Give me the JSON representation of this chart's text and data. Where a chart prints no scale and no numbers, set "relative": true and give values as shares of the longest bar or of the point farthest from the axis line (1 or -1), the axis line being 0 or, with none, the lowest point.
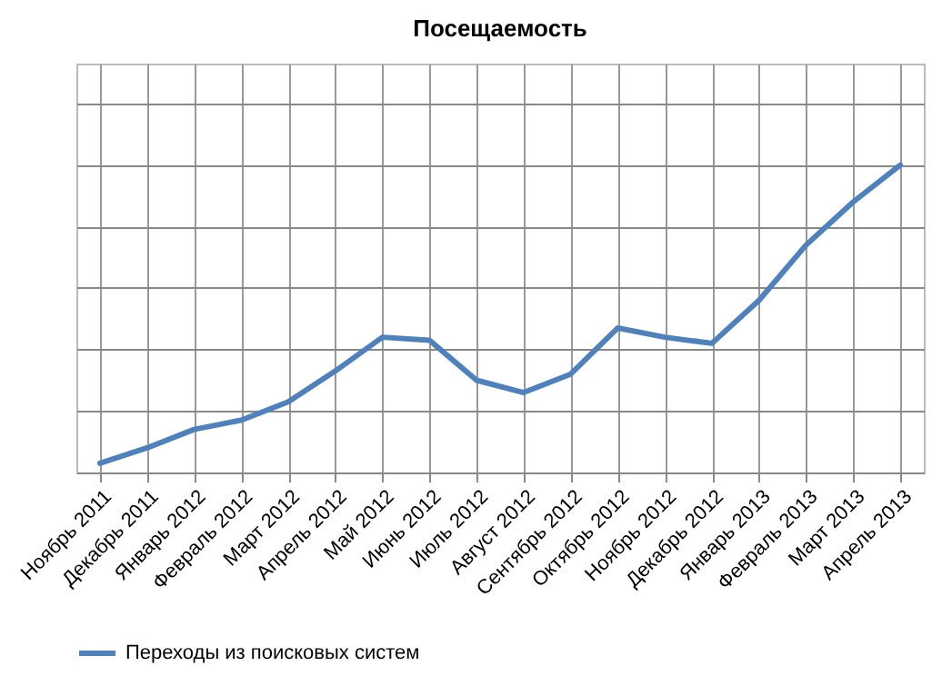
{
  "chart_data": {
    "type": "line",
    "title": "Посещаемость",
    "relative": true,
    "grid": true,
    "legend": "bottom",
    "marker": "none",
    "line_style": "solid",
    "categories": [
      "Ноябрь 2011",
      "Декабрь 2011",
      "Январь 2012",
      "Февраль 2012",
      "Март 2012",
      "Апрель 2012",
      "Май 2012",
      "Июнь 2012",
      "Июль 2012",
      "Август 2012",
      "Сентябрь 2012",
      "Октябрь 2012",
      "Ноябрь 2012",
      "Декабрь 2012",
      "Январь 2013",
      "Февраль 2013",
      "Март 2013",
      "Апрель 2013"
    ],
    "series": [
      {
        "name": "Переходы из поисковых систем",
        "color": "#4f81bd",
        "values": [
          0.03,
          0.08,
          0.14,
          0.17,
          0.23,
          0.33,
          0.44,
          0.43,
          0.3,
          0.26,
          0.32,
          0.47,
          0.44,
          0.42,
          0.56,
          0.74,
          0.88,
          1
        ]
      }
    ]
  }
}
